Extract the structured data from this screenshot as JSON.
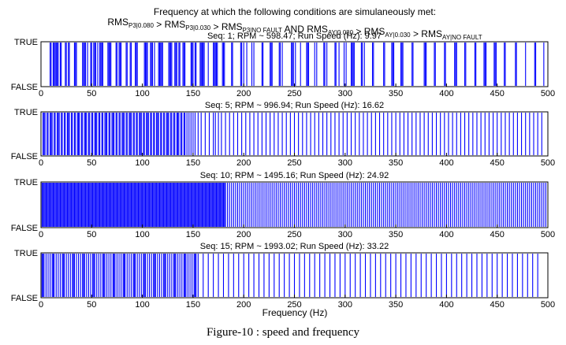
{
  "figure": {
    "title_line1": "Frequency at which the following conditions are simulaneously met:",
    "title_line2": [
      {
        "t": "RMS",
        "s": "P3|0.080"
      },
      {
        "t": " > RMS",
        "s": "P3|0.030"
      },
      {
        "t": " > RMS",
        "s": "P3|NO FAULT"
      },
      {
        "t": " AND RMS",
        "s": "AY|0.080"
      },
      {
        "t": " > RMS",
        "s": "AY|0.030"
      },
      {
        "t": " > RMS",
        "s": "AY|NO FAULT"
      }
    ],
    "xlabel": "Frequency (Hz)",
    "caption": "Figure-10 : speed and frequency"
  },
  "colors": {
    "signal": "#0000ff",
    "axes": "#000000",
    "background": "#ffffff"
  },
  "chart_data": [
    {
      "type": "bar",
      "title": "Seq: 1; RPM ~ 598.47; Run Speed (Hz): 9.97",
      "ytick_labels": [
        "TRUE",
        "FALSE"
      ],
      "xlim": [
        0,
        500
      ],
      "xticks": [
        0,
        50,
        100,
        150,
        200,
        250,
        300,
        350,
        400,
        450,
        500
      ],
      "true_frequencies": [
        9,
        10,
        12,
        13,
        14,
        15,
        16,
        17,
        19,
        20,
        24,
        25,
        27,
        28,
        33,
        34,
        35,
        41,
        42,
        43,
        44,
        46,
        49,
        50,
        52,
        53,
        54,
        56,
        58,
        59,
        60,
        61,
        66,
        67,
        68,
        69,
        74,
        75,
        77,
        78,
        79,
        84,
        85,
        88,
        89,
        93,
        94,
        95,
        102,
        103,
        104,
        105,
        108,
        109,
        110,
        112,
        116,
        117,
        118,
        119,
        120,
        126,
        127,
        128,
        129,
        132,
        133,
        134,
        136,
        137,
        140,
        141,
        142,
        148,
        149,
        150,
        152,
        153,
        157,
        158,
        159,
        160,
        161,
        165,
        170,
        171,
        172,
        173,
        174,
        179,
        180,
        181,
        188,
        189,
        197,
        198,
        200,
        203,
        208,
        210,
        218,
        219,
        226,
        227,
        228,
        235,
        236,
        238,
        247,
        248,
        249,
        251,
        256,
        262,
        263,
        264,
        270,
        272,
        279,
        280,
        282,
        290,
        291,
        294,
        299,
        301,
        306,
        307,
        308,
        309,
        316,
        317,
        319,
        327,
        328,
        338,
        339,
        346,
        347,
        348,
        355,
        356,
        357,
        366,
        367,
        378,
        379,
        380,
        388,
        389,
        398,
        399,
        408,
        409,
        410,
        418,
        419,
        428,
        429,
        437,
        438,
        439,
        447,
        448,
        449,
        457,
        458,
        468,
        469,
        478,
        487,
        488,
        496
      ]
    },
    {
      "type": "bar",
      "title": "Seq: 5; RPM ~ 996.94; Run Speed (Hz): 16.62",
      "ytick_labels": [
        "TRUE",
        "FALSE"
      ],
      "xlim": [
        0,
        500
      ],
      "xticks": [
        0,
        50,
        100,
        150,
        200,
        250,
        300,
        350,
        400,
        450,
        500
      ],
      "true_frequencies": [
        2,
        3,
        4,
        6,
        7,
        9,
        10,
        11,
        13,
        14,
        16,
        17,
        18,
        20,
        21,
        23,
        24,
        26,
        27,
        28,
        30,
        31,
        33,
        34,
        36,
        37,
        38,
        40,
        41,
        43,
        44,
        45,
        47,
        48,
        50,
        51,
        53,
        54,
        55,
        57,
        58,
        60,
        61,
        63,
        64,
        65,
        67,
        68,
        70,
        71,
        72,
        74,
        75,
        77,
        78,
        80,
        81,
        82,
        84,
        85,
        87,
        88,
        89,
        91,
        92,
        94,
        95,
        97,
        98,
        99,
        101,
        102,
        104,
        105,
        106,
        108,
        109,
        111,
        112,
        114,
        115,
        116,
        118,
        119,
        121,
        122,
        124,
        125,
        126,
        128,
        129,
        131,
        132,
        134,
        135,
        136,
        138,
        139,
        141,
        142,
        144,
        146,
        148,
        150,
        152,
        155,
        158,
        162,
        166,
        170,
        172,
        175,
        178,
        182,
        186,
        190,
        194,
        198,
        202,
        206,
        210,
        214,
        218,
        222,
        226,
        230,
        234,
        238,
        242,
        246,
        250,
        254,
        258,
        262,
        266,
        270,
        274,
        278,
        282,
        286,
        290,
        294,
        298,
        302,
        306,
        310,
        314,
        318,
        322,
        326,
        330,
        334,
        338,
        342,
        346,
        350,
        354,
        358,
        362,
        366,
        370,
        374,
        378,
        382,
        386,
        390,
        394,
        398,
        402,
        406,
        410,
        414,
        418,
        422,
        426,
        430,
        434,
        438,
        442,
        446,
        450,
        454,
        458,
        462,
        466,
        470,
        474,
        478,
        482,
        486,
        490,
        494
      ]
    },
    {
      "type": "bar",
      "title": "Seq: 10; RPM ~ 1495.16; Run Speed (Hz): 24.92",
      "ytick_labels": [
        "TRUE",
        "FALSE"
      ],
      "xlim": [
        0,
        500
      ],
      "xticks": [
        0,
        50,
        100,
        150,
        200,
        250,
        300,
        350,
        400,
        450,
        500
      ],
      "true_frequencies": [
        1,
        2,
        3,
        4,
        5,
        6,
        7,
        8,
        9,
        10,
        11,
        12,
        13,
        14,
        15,
        16,
        17,
        18,
        19,
        20,
        21,
        22,
        23,
        24,
        25,
        26,
        27,
        28,
        29,
        30,
        31,
        32,
        33,
        34,
        35,
        36,
        37,
        38,
        39,
        40,
        41,
        42,
        43,
        44,
        45,
        46,
        47,
        48,
        49,
        50,
        51,
        52,
        53,
        54,
        55,
        56,
        57,
        58,
        59,
        60,
        61,
        62,
        63,
        64,
        65,
        66,
        67,
        68,
        69,
        70,
        71,
        72,
        73,
        74,
        75,
        76,
        77,
        78,
        79,
        80,
        81,
        82,
        83,
        84,
        85,
        86,
        87,
        88,
        89,
        90,
        91,
        92,
        93,
        94,
        95,
        96,
        97,
        98,
        99,
        100,
        101,
        102,
        103,
        104,
        105,
        106,
        107,
        108,
        109,
        110,
        111,
        112,
        113,
        114,
        115,
        116,
        117,
        118,
        119,
        120,
        121,
        122,
        123,
        124,
        125,
        126,
        127,
        128,
        129,
        130,
        131,
        132,
        133,
        134,
        135,
        136,
        137,
        138,
        139,
        140,
        141,
        142,
        143,
        144,
        145,
        146,
        147,
        148,
        149,
        150,
        151,
        152,
        153,
        154,
        155,
        156,
        157,
        158,
        159,
        160,
        161,
        162,
        163,
        164,
        165,
        166,
        167,
        168,
        169,
        170,
        171,
        172,
        173,
        174,
        175,
        176,
        177,
        178,
        179,
        180,
        181,
        182,
        184,
        186,
        188,
        190,
        192,
        194,
        196,
        198,
        200,
        202,
        204,
        206,
        208,
        210,
        212,
        214,
        216,
        218,
        220,
        222,
        224,
        226,
        228,
        230,
        232,
        234,
        236,
        238,
        240,
        242,
        244,
        246,
        248,
        250,
        252,
        254,
        256,
        258,
        260,
        262,
        264,
        266,
        268,
        270,
        272,
        274,
        276,
        278,
        280,
        282,
        284,
        286,
        288,
        290,
        292,
        294,
        296,
        298,
        300,
        302,
        304,
        306,
        308,
        310,
        312,
        314,
        316,
        318,
        320,
        322,
        324,
        326,
        328,
        330,
        332,
        334,
        336,
        338,
        340,
        342,
        344,
        346,
        348,
        350,
        352,
        354,
        356,
        358,
        360,
        362,
        364,
        366,
        368,
        370,
        372,
        374,
        376,
        378,
        380,
        382,
        384,
        386,
        388,
        390,
        392,
        394,
        396,
        398,
        400,
        402,
        404,
        406,
        408,
        410,
        412,
        414,
        416,
        418,
        420,
        422,
        424,
        426,
        428,
        430,
        432,
        434,
        436,
        438,
        440,
        442,
        444,
        446,
        448,
        450,
        452,
        454,
        456,
        458,
        460,
        462,
        464,
        466,
        468,
        470,
        472,
        474,
        476,
        478,
        480,
        482,
        484,
        486,
        488,
        490,
        492,
        494,
        496,
        498
      ]
    },
    {
      "type": "bar",
      "title": "Seq: 15; RPM ~ 1993.02; Run Speed (Hz): 33.22",
      "ytick_labels": [
        "TRUE",
        "FALSE"
      ],
      "xlim": [
        0,
        500
      ],
      "xticks": [
        0,
        50,
        100,
        150,
        200,
        250,
        300,
        350,
        400,
        450,
        500
      ],
      "true_frequencies": [
        1,
        2,
        3,
        5,
        7,
        9,
        11,
        12,
        13,
        15,
        17,
        19,
        21,
        22,
        23,
        25,
        27,
        29,
        31,
        32,
        33,
        35,
        37,
        39,
        41,
        42,
        43,
        45,
        47,
        49,
        51,
        52,
        53,
        55,
        57,
        59,
        61,
        62,
        63,
        65,
        67,
        69,
        71,
        72,
        73,
        75,
        77,
        79,
        81,
        82,
        83,
        85,
        87,
        89,
        91,
        92,
        93,
        95,
        97,
        99,
        101,
        102,
        103,
        105,
        107,
        109,
        111,
        112,
        113,
        115,
        117,
        119,
        121,
        122,
        123,
        125,
        127,
        129,
        131,
        132,
        133,
        135,
        137,
        139,
        141,
        142,
        143,
        145,
        147,
        149,
        151,
        152,
        153,
        155,
        160,
        165,
        170,
        175,
        180,
        185,
        190,
        195,
        200,
        205,
        210,
        215,
        220,
        225,
        230,
        235,
        240,
        245,
        250,
        255,
        260,
        265,
        270,
        275,
        280,
        285,
        290,
        295,
        300,
        305,
        310,
        315,
        320,
        325,
        330,
        335,
        340,
        345,
        350,
        355,
        360,
        365,
        370,
        375,
        380,
        385,
        390,
        395,
        400,
        405,
        410,
        415,
        420,
        425,
        430,
        435,
        440,
        445,
        450,
        455,
        460,
        465,
        470,
        475,
        480,
        485,
        490
      ]
    }
  ]
}
